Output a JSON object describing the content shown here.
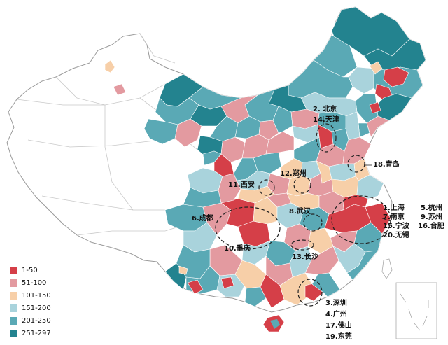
{
  "legend": {
    "items": [
      {
        "label": "1-50",
        "color": "#d53f48"
      },
      {
        "label": "51-100",
        "color": "#e39aa0"
      },
      {
        "label": "101-150",
        "color": "#f7cfa8"
      },
      {
        "label": "151-200",
        "color": "#a9d3dc"
      },
      {
        "label": "201-250",
        "color": "#5aa9b5"
      },
      {
        "label": "251-297",
        "color": "#23838f"
      }
    ]
  },
  "city_labels": {
    "beijing": "2. 北京",
    "tianjin": "14.天津",
    "qingdao": "18.青岛",
    "zhengzhou": "12.郑州",
    "xian": "11.西安",
    "shanghai": "1.上海",
    "hangzhou": "5.杭州",
    "nanjing": "7.南京",
    "suzhou": "9.苏州",
    "ningbo": "15.宁波",
    "hefei": "16.合肥",
    "wuxi": "20.无锡",
    "chengdu": "6.成都",
    "wuhan": "8.武汉",
    "chongqing": "10.重庆",
    "changsha": "13.长沙",
    "shenzhen": "3.深圳",
    "guangzhou": "4.广州",
    "foshan": "17.佛山",
    "dongguan": "19.东莞"
  },
  "colors": {
    "border": "#9a9a9a",
    "white_region": "#ffffff",
    "ocean_line": "#aaaaaa"
  }
}
